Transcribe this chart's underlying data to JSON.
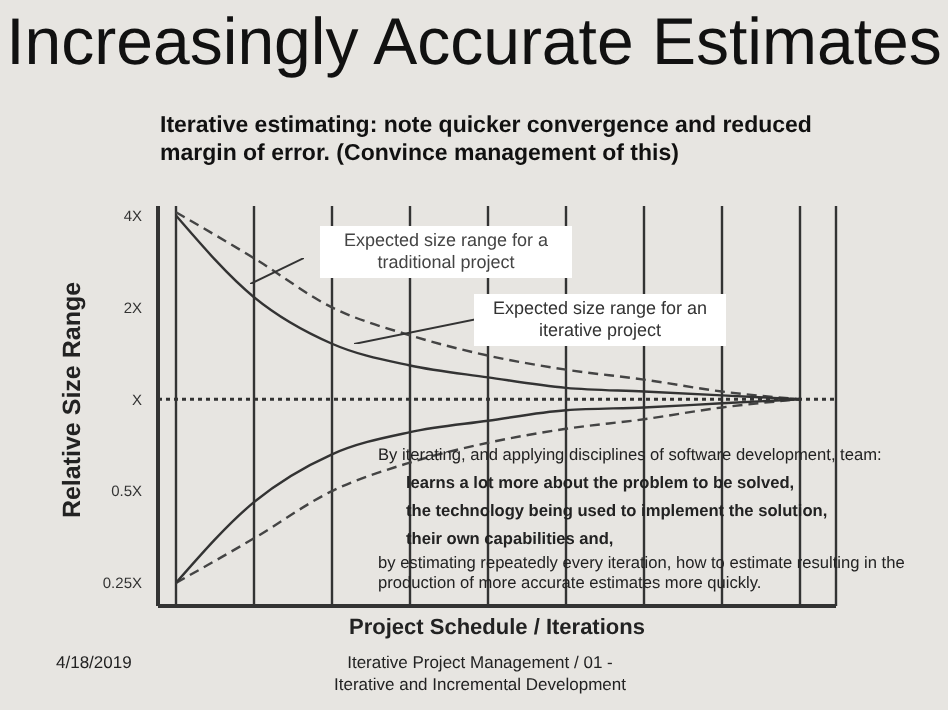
{
  "chart_data": {
    "type": "line",
    "title": "Increasingly Accurate Estimates",
    "subtitle": "Iterative estimating: note quicker convergence and reduced margin of error.  (Convince management of this)",
    "xlabel": "Project Schedule / Iterations",
    "ylabel": "Relative Size Range",
    "categories": [
      null,
      null,
      null,
      null,
      null,
      null,
      null,
      null,
      null
    ],
    "series": [
      {
        "name": "Expected size range for a traditional project",
        "color": "#444444",
        "line_style": "dashed",
        "values": [
          4.1,
          2.9,
          2,
          1.62,
          1.39,
          1.25,
          1.16,
          1.06,
          1
        ]
      },
      {
        "color": "#444444",
        "line_style": "dashed",
        "values": [
          0.25,
          0.35,
          0.5,
          0.62,
          0.72,
          0.8,
          0.86,
          0.94,
          1
        ]
      },
      {
        "name": "Expected size range for an iterative project",
        "color": "#333333",
        "line_style": "solid",
        "values": [
          4,
          2.16,
          1.52,
          1.29,
          1.18,
          1.09,
          1.06,
          1.03,
          1
        ]
      },
      {
        "color": "#333333",
        "line_style": "solid",
        "values": [
          0.25,
          0.46,
          0.66,
          0.78,
          0.85,
          0.92,
          0.94,
          0.97,
          1
        ]
      }
    ],
    "log": "y",
    "ylim": [
      0.21,
      4.3
    ],
    "yticks": [
      {
        "value": 0.25,
        "label": "0.25X"
      },
      {
        "value": 0.5,
        "label": "0.5X"
      },
      {
        "value": 1,
        "label": "X"
      },
      {
        "value": 2,
        "label": "2X"
      },
      {
        "value": 4,
        "label": "4X"
      }
    ],
    "tick_labels": "y",
    "grid": "x",
    "marker": "none",
    "legend": false,
    "ref_lines": [
      {
        "axis": "y",
        "value": 1,
        "color": "#333333",
        "line_style": "dotted"
      }
    ],
    "annotations": [
      "By iterating, and applying disciplines of software development, team:",
      "learns a lot more about the problem to be solved,",
      "the technology being used to implement the solution,",
      "their own capabilities and,",
      "by estimating repeatedly every iteration, how to estimate resulting in the production of more accurate estimates more quickly.",
      "4/18/2019",
      "Iterative Project Management / 01 - Iterative and Incremental Development"
    ]
  }
}
